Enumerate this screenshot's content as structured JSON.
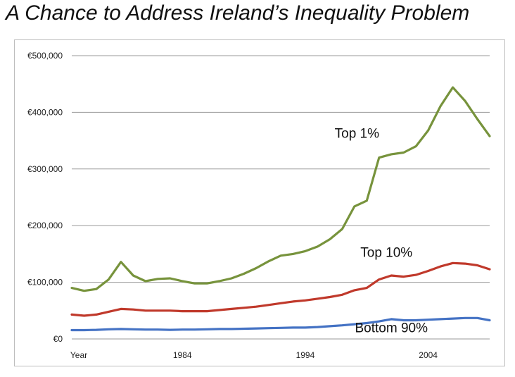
{
  "chart_data": {
    "type": "line",
    "title": "A Chance to Address Ireland’s Inequality Problem",
    "xlabel": "",
    "ylabel": "",
    "xlim": [
      1975,
      2009
    ],
    "ylim": [
      0,
      500000
    ],
    "grid": true,
    "y_ticks": [
      {
        "value": 0,
        "label": "€0"
      },
      {
        "value": 100000,
        "label": "€100,000"
      },
      {
        "value": 200000,
        "label": "€200,000"
      },
      {
        "value": 300000,
        "label": "€300,000"
      },
      {
        "value": 400000,
        "label": "€400,000"
      },
      {
        "value": 500000,
        "label": "€500,000"
      }
    ],
    "x_ticks": [
      {
        "value": 1975,
        "label": "Year"
      },
      {
        "value": 1984,
        "label": "1984"
      },
      {
        "value": 1994,
        "label": "1994"
      },
      {
        "value": 2004,
        "label": "2004"
      }
    ],
    "x": [
      1975,
      1976,
      1977,
      1978,
      1979,
      1980,
      1981,
      1982,
      1983,
      1984,
      1985,
      1986,
      1987,
      1988,
      1989,
      1990,
      1991,
      1992,
      1993,
      1994,
      1995,
      1996,
      1997,
      1998,
      1999,
      2000,
      2001,
      2002,
      2003,
      2004,
      2005,
      2006,
      2007,
      2008,
      2009
    ],
    "series": [
      {
        "name": "Top 1%",
        "color": "#77933c",
        "label_anchor": {
          "x": 1998.2,
          "y": 355000
        },
        "values": [
          90000,
          85000,
          88000,
          105000,
          136000,
          112000,
          102000,
          106000,
          107000,
          102000,
          98000,
          98000,
          102000,
          107000,
          115000,
          125000,
          137000,
          147000,
          150000,
          155000,
          163000,
          176000,
          194000,
          234000,
          244000,
          320000,
          326000,
          329000,
          340000,
          368000,
          411000,
          444000,
          420000,
          388000,
          358000
        ]
      },
      {
        "name": "Top 10%",
        "color": "#c0392b",
        "label_anchor": {
          "x": 2000.6,
          "y": 145000
        },
        "values": [
          43000,
          41000,
          43000,
          48000,
          53000,
          52000,
          50000,
          50000,
          50000,
          49000,
          49000,
          49000,
          51000,
          53000,
          55000,
          57000,
          60000,
          63000,
          66000,
          68000,
          71000,
          74000,
          78000,
          86000,
          90000,
          105000,
          112000,
          110000,
          113000,
          120000,
          128000,
          134000,
          133000,
          130000,
          123000
        ]
      },
      {
        "name": "Bottom 90%",
        "color": "#4472c4",
        "label_anchor": {
          "x": 2001.0,
          "y": 12000
        },
        "values": [
          15500,
          15500,
          16000,
          17000,
          17500,
          17000,
          16500,
          16500,
          16000,
          16500,
          16500,
          17000,
          17500,
          17500,
          18000,
          18500,
          19000,
          19500,
          20000,
          20000,
          21000,
          22500,
          24000,
          26000,
          28000,
          31000,
          35000,
          33000,
          33000,
          34000,
          35000,
          36000,
          37000,
          37000,
          33000
        ]
      }
    ]
  }
}
